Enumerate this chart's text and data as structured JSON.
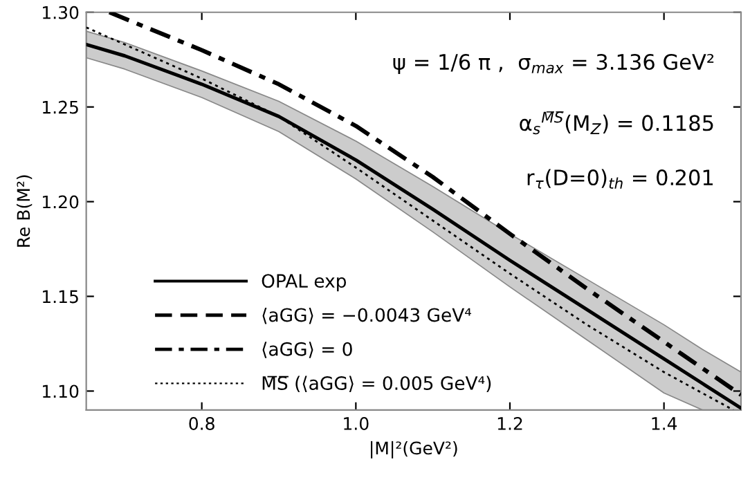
{
  "chart_data": {
    "type": "line",
    "xlabel": "|M|²(GeV²)",
    "ylabel": "Re B(M²)",
    "xlim": [
      0.65,
      1.5
    ],
    "ylim": [
      1.09,
      1.3
    ],
    "xticks": [
      0.8,
      {
        "value": 1.0,
        "label": "1.0"
      },
      1.2,
      1.4
    ],
    "yticks": [
      {
        "value": 1.1,
        "label": "1.10"
      },
      1.15,
      {
        "value": 1.2,
        "label": "1.20"
      },
      1.25,
      {
        "value": 1.3,
        "label": "1.30"
      }
    ],
    "grid": false,
    "legend": "bottom left",
    "annotations": [
      "ψ = 1/6 π ,  σ$_{max}$ = 3.136 GeV²",
      "α$_{s}$$^{M̅S̅}$(M$_{Z}$) = 0.1185",
      "r$_{τ}$(D=0)$_{th}$ = 0.201"
    ],
    "series": [
      {
        "name": "OPAL exp",
        "color": "#000000",
        "line_style": "solid",
        "x": [
          0.65,
          0.7,
          0.8,
          0.9,
          1.0,
          1.1,
          1.2,
          1.3,
          1.4,
          1.45,
          1.5
        ],
        "values": [
          1.283,
          1.277,
          1.262,
          1.245,
          1.222,
          1.196,
          1.169,
          1.143,
          1.117,
          1.104,
          1.091
        ],
        "lower": [
          1.276,
          1.27,
          1.255,
          1.237,
          1.212,
          1.184,
          1.155,
          1.127,
          1.099,
          1.09,
          1.09
        ],
        "upper": [
          1.29,
          1.284,
          1.269,
          1.253,
          1.232,
          1.208,
          1.183,
          1.159,
          1.135,
          1.122,
          1.11
        ]
      },
      {
        "name": "⟨aGG⟩ = −0.0043 GeV⁴",
        "color": "#000000",
        "line_style": "dashed"
      },
      {
        "name": "⟨aGG⟩ = 0",
        "color": "#000000",
        "line_style": "dashdot",
        "x": [
          0.68,
          0.8,
          0.9,
          1.0,
          1.1,
          1.2,
          1.3,
          1.4,
          1.5
        ],
        "values": [
          1.3,
          1.28,
          1.262,
          1.24,
          1.213,
          1.183,
          1.154,
          1.126,
          1.098
        ]
      },
      {
        "name": "M̅S̅ (⟨aGG⟩ = 0.005 GeV⁴)",
        "color": "#000000",
        "line_style": "dotted",
        "x": [
          0.65,
          0.7,
          0.8,
          0.9,
          1.0,
          1.1,
          1.2,
          1.3,
          1.4,
          1.49
        ],
        "values": [
          1.292,
          1.283,
          1.265,
          1.245,
          1.218,
          1.19,
          1.162,
          1.135,
          1.11,
          1.09
        ]
      }
    ]
  }
}
